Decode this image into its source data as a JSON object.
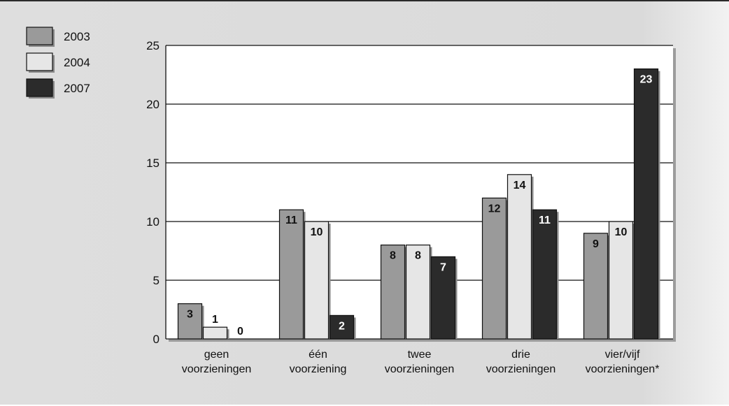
{
  "chart_data": {
    "type": "bar",
    "categories": [
      [
        "geen",
        "voorzieningen"
      ],
      [
        "één",
        "voorziening"
      ],
      [
        "twee",
        "voorzieningen"
      ],
      [
        "drie",
        "voorzieningen"
      ],
      [
        "vier/vijf",
        "voorzieningen*"
      ]
    ],
    "series": [
      {
        "name": "2003",
        "color": "#9a9a9a",
        "label_color": "#111111",
        "values": [
          3,
          11,
          8,
          12,
          9
        ]
      },
      {
        "name": "2004",
        "color": "#e6e6e6",
        "label_color": "#111111",
        "values": [
          1,
          10,
          8,
          14,
          10
        ]
      },
      {
        "name": "2007",
        "color": "#2b2b2b",
        "label_color": "#ffffff",
        "values": [
          0,
          2,
          7,
          11,
          23
        ]
      }
    ],
    "ylim": [
      0,
      25
    ],
    "yticks": [
      0,
      5,
      10,
      15,
      20,
      25
    ],
    "grid": true,
    "legend_position": "top-left"
  }
}
